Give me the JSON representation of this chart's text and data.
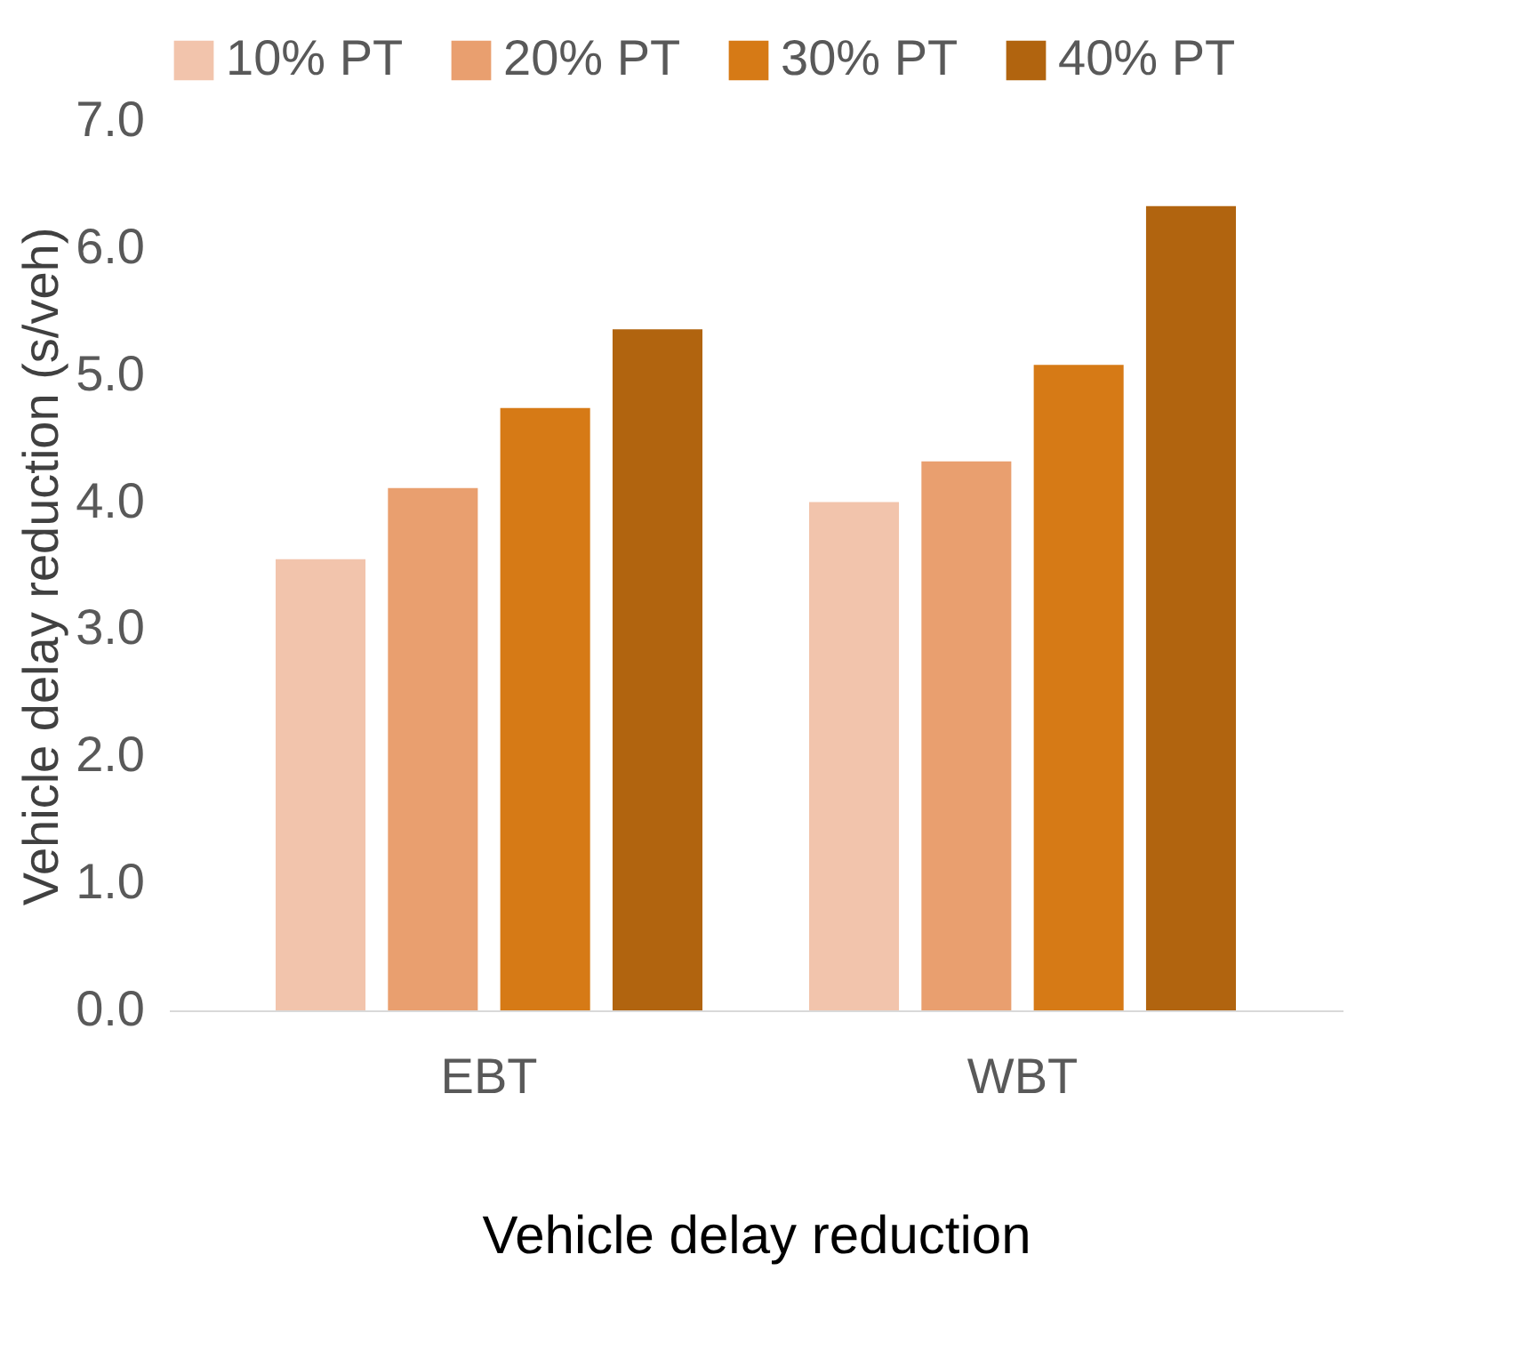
{
  "chart_data": {
    "type": "bar",
    "xlabel": "Vehicle delay reduction",
    "ylabel": "Vehicle delay reduction (s/veh)",
    "categories": [
      "EBT",
      "WBT"
    ],
    "series": [
      {
        "name": "10% PT",
        "color": "#f2c4ac",
        "values": [
          3.55,
          4.0
        ]
      },
      {
        "name": "20% PT",
        "color": "#e99f6f",
        "values": [
          4.11,
          4.32
        ]
      },
      {
        "name": "30% PT",
        "color": "#d67a16",
        "values": [
          4.74,
          5.08
        ]
      },
      {
        "name": "40% PT",
        "color": "#b1640f",
        "values": [
          5.36,
          6.33
        ]
      }
    ],
    "ylim": [
      0,
      7
    ],
    "yticks": [
      {
        "value": 0,
        "label": "0.0"
      },
      {
        "value": 1,
        "label": "1.0"
      },
      {
        "value": 2,
        "label": "2.0"
      },
      {
        "value": 3,
        "label": "3.0"
      },
      {
        "value": 4,
        "label": "4.0"
      },
      {
        "value": 5,
        "label": "5.0"
      },
      {
        "value": 6,
        "label": "6.0"
      },
      {
        "value": 7,
        "label": "7.0"
      }
    ],
    "grid": false,
    "legend": "top"
  }
}
